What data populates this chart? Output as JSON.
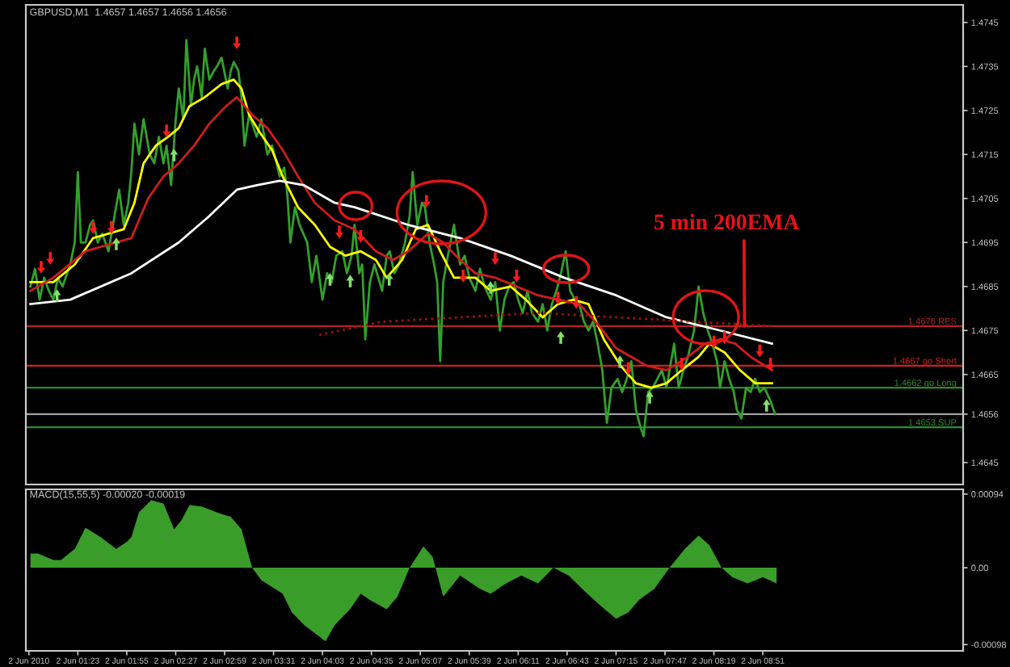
{
  "chart_data": [
    {
      "type": "line",
      "title": "GBPUSD,M1  1.4657 1.4657 1.4656 1.4656",
      "xlim": [
        "2010-06-02T00:49",
        "2010-06-02T11:02"
      ],
      "ylim": [
        1.464,
        1.4749
      ],
      "yticks": [
        1.4745,
        1.4735,
        1.4725,
        1.4715,
        1.4705,
        1.4695,
        1.4685,
        1.4675,
        1.4665,
        1.4656,
        1.4645
      ],
      "tick_labels": "y",
      "series": [
        {
          "color": "#33a02c",
          "x": [
            "2010-06-02T00:52",
            "2010-06-02T00:55",
            "2010-06-02T00:58",
            "2010-06-02T01:01",
            "2010-06-02T01:04",
            "2010-06-02T01:07",
            "2010-06-02T01:10",
            "2010-06-02T01:13",
            "2010-06-02T01:18",
            "2010-06-02T01:21",
            "2010-06-02T01:23",
            "2010-06-02T01:25",
            "2010-06-02T01:28",
            "2010-06-02T01:31",
            "2010-06-02T01:33",
            "2010-06-02T01:36",
            "2010-06-02T01:39",
            "2010-06-02T01:43",
            "2010-06-02T01:46",
            "2010-06-02T01:50",
            "2010-06-02T01:53",
            "2010-06-02T01:56",
            "2010-06-02T01:58",
            "2010-06-02T02:00",
            "2010-06-02T02:03",
            "2010-06-02T02:06",
            "2010-06-02T02:10",
            "2010-06-02T02:13",
            "2010-06-02T02:16",
            "2010-06-02T02:19",
            "2010-06-02T02:21",
            "2010-06-02T02:24",
            "2010-06-02T02:27",
            "2010-06-02T02:29",
            "2010-06-02T02:32",
            "2010-06-02T02:34",
            "2010-06-02T02:37",
            "2010-06-02T02:39",
            "2010-06-02T02:41",
            "2010-06-02T02:44",
            "2010-06-02T02:46",
            "2010-06-02T02:49",
            "2010-06-02T02:52",
            "2010-06-02T02:54",
            "2010-06-02T02:57",
            "2010-06-02T03:01",
            "2010-06-02T03:03",
            "2010-06-02T03:05",
            "2010-06-02T03:08",
            "2010-06-02T03:10",
            "2010-06-02T03:12",
            "2010-06-02T03:15",
            "2010-06-02T03:18",
            "2010-06-02T03:20",
            "2010-06-02T03:23",
            "2010-06-02T03:27",
            "2010-06-02T03:30",
            "2010-06-02T03:33",
            "2010-06-02T03:35",
            "2010-06-02T03:38",
            "2010-06-02T03:40",
            "2010-06-02T03:42",
            "2010-06-02T03:45",
            "2010-06-02T03:48",
            "2010-06-02T03:53",
            "2010-06-02T03:56",
            "2010-06-02T03:59",
            "2010-06-02T04:03",
            "2010-06-02T04:06",
            "2010-06-02T04:09",
            "2010-06-02T04:12",
            "2010-06-02T04:16",
            "2010-06-02T04:19",
            "2010-06-02T04:22",
            "2010-06-02T04:24",
            "2010-06-02T04:27",
            "2010-06-02T04:29",
            "2010-06-02T04:31",
            "2010-06-02T04:34",
            "2010-06-02T04:37",
            "2010-06-02T04:42",
            "2010-06-02T04:45",
            "2010-06-02T04:47",
            "2010-06-02T04:50",
            "2010-06-02T04:53",
            "2010-06-02T04:57",
            "2010-06-02T05:00",
            "2010-06-02T05:02",
            "2010-06-02T05:05",
            "2010-06-02T05:08",
            "2010-06-02T05:10",
            "2010-06-02T05:13",
            "2010-06-02T05:16",
            "2010-06-02T05:18",
            "2010-06-02T05:20",
            "2010-06-02T05:22",
            "2010-06-02T05:25",
            "2010-06-02T05:29",
            "2010-06-02T05:33",
            "2010-06-02T05:36",
            "2010-06-02T05:39",
            "2010-06-02T05:43",
            "2010-06-02T05:46",
            "2010-06-02T05:49",
            "2010-06-02T05:53",
            "2010-06-02T05:56",
            "2010-06-02T05:59",
            "2010-06-02T06:02",
            "2010-06-02T06:05",
            "2010-06-02T06:08",
            "2010-06-02T06:11",
            "2010-06-02T06:14",
            "2010-06-02T06:17",
            "2010-06-02T06:20",
            "2010-06-02T06:24",
            "2010-06-02T06:27",
            "2010-06-02T06:30",
            "2010-06-02T06:33",
            "2010-06-02T06:36",
            "2010-06-02T06:39",
            "2010-06-02T06:42",
            "2010-06-02T06:45",
            "2010-06-02T06:48",
            "2010-06-02T06:51",
            "2010-06-02T06:54",
            "2010-06-02T06:57",
            "2010-06-02T07:00",
            "2010-06-02T07:03",
            "2010-06-02T07:06",
            "2010-06-02T07:09",
            "2010-06-02T07:12",
            "2010-06-02T07:16",
            "2010-06-02T07:19",
            "2010-06-02T07:22",
            "2010-06-02T07:25",
            "2010-06-02T07:28",
            "2010-06-02T07:31",
            "2010-06-02T07:33",
            "2010-06-02T07:36",
            "2010-06-02T07:39",
            "2010-06-02T07:42",
            "2010-06-02T07:45",
            "2010-06-02T07:48",
            "2010-06-02T07:51",
            "2010-06-02T07:53",
            "2010-06-02T07:56",
            "2010-06-02T07:59",
            "2010-06-02T08:02",
            "2010-06-02T08:06",
            "2010-06-02T08:09",
            "2010-06-02T08:12",
            "2010-06-02T08:15",
            "2010-06-02T08:18",
            "2010-06-02T08:21",
            "2010-06-02T08:23",
            "2010-06-02T08:26",
            "2010-06-02T08:29",
            "2010-06-02T08:32",
            "2010-06-02T08:34",
            "2010-06-02T08:37",
            "2010-06-02T08:40",
            "2010-06-02T08:43",
            "2010-06-02T08:46",
            "2010-06-02T08:49",
            "2010-06-02T08:52",
            "2010-06-02T08:56",
            "2010-06-02T08:59"
          ],
          "values": [
            1.4685,
            1.4689,
            1.4682,
            1.4687,
            1.4684,
            1.4682,
            1.4687,
            1.4685,
            1.469,
            1.4695,
            1.4711,
            1.4695,
            1.4695,
            1.4699,
            1.47,
            1.4695,
            1.4697,
            1.4693,
            1.4699,
            1.4707,
            1.4699,
            1.4704,
            1.4711,
            1.4722,
            1.4715,
            1.4723,
            1.4715,
            1.4713,
            1.4719,
            1.4713,
            1.4717,
            1.4708,
            1.4723,
            1.473,
            1.4723,
            1.4741,
            1.4726,
            1.4732,
            1.4735,
            1.4728,
            1.4739,
            1.4732,
            1.4734,
            1.4735,
            1.4737,
            1.473,
            1.4734,
            1.4736,
            1.4734,
            1.4728,
            1.4717,
            1.4724,
            1.4721,
            1.4719,
            1.4723,
            1.4715,
            1.4717,
            1.4713,
            1.471,
            1.4712,
            1.4706,
            1.4695,
            1.4703,
            1.4699,
            1.4695,
            1.4686,
            1.4692,
            1.4682,
            1.4688,
            1.4686,
            1.4692,
            1.4693,
            1.4688,
            1.4692,
            1.4699,
            1.4688,
            1.469,
            1.4673,
            1.4686,
            1.469,
            1.4684,
            1.4692,
            1.4693,
            1.4688,
            1.469,
            1.4695,
            1.4701,
            1.4711,
            1.4699,
            1.4704,
            1.4703,
            1.4695,
            1.469,
            1.4686,
            1.4668,
            1.4686,
            1.4692,
            1.4699,
            1.469,
            1.4692,
            1.4687,
            1.4684,
            1.4689,
            1.4685,
            1.4682,
            1.4686,
            1.4675,
            1.4682,
            1.4685,
            1.4686,
            1.4682,
            1.4679,
            1.4684,
            1.4679,
            1.4677,
            1.4681,
            1.4675,
            1.4681,
            1.4684,
            1.4688,
            1.4693,
            1.4684,
            1.4682,
            1.4681,
            1.4677,
            1.4675,
            1.4677,
            1.4672,
            1.4666,
            1.4654,
            1.4662,
            1.4664,
            1.4661,
            1.4664,
            1.4668,
            1.4657,
            1.4653,
            1.4651,
            1.4661,
            1.4662,
            1.4664,
            1.4666,
            1.4662,
            1.4668,
            1.4672,
            1.4662,
            1.4666,
            1.4669,
            1.4675,
            1.4685,
            1.4679,
            1.4675,
            1.4672,
            1.4668,
            1.4662,
            1.4668,
            1.4664,
            1.4661,
            1.4657,
            1.4655,
            1.4662,
            1.4661,
            1.4664,
            1.4661,
            1.4662,
            1.4659,
            1.4656
          ]
        },
        {
          "color": "#ffff00",
          "x": [
            "2010-06-02T00:52",
            "2010-06-02T01:07",
            "2010-06-02T01:21",
            "2010-06-02T01:33",
            "2010-06-02T01:43",
            "2010-06-02T01:53",
            "2010-06-02T02:00",
            "2010-06-02T02:06",
            "2010-06-02T02:14",
            "2010-06-02T02:22",
            "2010-06-02T02:29",
            "2010-06-02T02:36",
            "2010-06-02T02:46",
            "2010-06-02T02:57",
            "2010-06-02T03:05",
            "2010-06-02T03:10",
            "2010-06-02T03:15",
            "2010-06-02T03:22",
            "2010-06-02T03:30",
            "2010-06-02T03:37",
            "2010-06-02T03:47",
            "2010-06-02T03:58",
            "2010-06-02T04:08",
            "2010-06-02T04:18",
            "2010-06-02T04:28",
            "2010-06-02T04:38",
            "2010-06-02T04:45",
            "2010-06-02T04:55",
            "2010-06-02T05:04",
            "2010-06-02T05:12",
            "2010-06-02T05:20",
            "2010-06-02T05:29",
            "2010-06-02T05:43",
            "2010-06-02T05:53",
            "2010-06-02T06:06",
            "2010-06-02T06:16",
            "2010-06-02T06:27",
            "2010-06-02T06:37",
            "2010-06-02T06:47",
            "2010-06-02T06:57",
            "2010-06-02T07:07",
            "2010-06-02T07:18",
            "2010-06-02T07:28",
            "2010-06-02T07:38",
            "2010-06-02T07:48",
            "2010-06-02T07:58",
            "2010-06-02T08:09",
            "2010-06-02T08:16",
            "2010-06-02T08:26",
            "2010-06-02T08:36",
            "2010-06-02T08:46",
            "2010-06-02T08:57"
          ],
          "values": [
            1.4686,
            1.4686,
            1.469,
            1.4696,
            1.4697,
            1.4698,
            1.4704,
            1.4713,
            1.4717,
            1.4719,
            1.4721,
            1.4726,
            1.4728,
            1.4731,
            1.4732,
            1.473,
            1.4724,
            1.472,
            1.4716,
            1.471,
            1.4703,
            1.4699,
            1.4694,
            1.4692,
            1.4693,
            1.4691,
            1.4687,
            1.4691,
            1.4698,
            1.4699,
            1.4693,
            1.4687,
            1.4687,
            1.4684,
            1.4685,
            1.4682,
            1.4678,
            1.4681,
            1.4682,
            1.4681,
            1.4673,
            1.4667,
            1.4663,
            1.4662,
            1.4663,
            1.4666,
            1.4669,
            1.4672,
            1.467,
            1.4666,
            1.4663,
            1.4663
          ]
        },
        {
          "color": "#d01c1c",
          "x": [
            "2010-06-02T00:52",
            "2010-06-02T01:07",
            "2010-06-02T01:28",
            "2010-06-02T01:48",
            "2010-06-02T01:58",
            "2010-06-02T02:09",
            "2010-06-02T02:19",
            "2010-06-02T02:29",
            "2010-06-02T02:39",
            "2010-06-02T02:49",
            "2010-06-02T03:00",
            "2010-06-02T03:07",
            "2010-06-02T03:17",
            "2010-06-02T03:27",
            "2010-06-02T03:37",
            "2010-06-02T03:47",
            "2010-06-02T03:58",
            "2010-06-02T04:11",
            "2010-06-02T04:24",
            "2010-06-02T04:38",
            "2010-06-02T04:49",
            "2010-06-02T04:59",
            "2010-06-02T05:12",
            "2010-06-02T05:22",
            "2010-06-02T05:33",
            "2010-06-02T05:43",
            "2010-06-02T05:56",
            "2010-06-02T06:10",
            "2010-06-02T06:24",
            "2010-06-02T06:37",
            "2010-06-02T06:51",
            "2010-06-02T07:04",
            "2010-06-02T07:15",
            "2010-06-02T07:25",
            "2010-06-02T07:35",
            "2010-06-02T07:48",
            "2010-06-02T08:02",
            "2010-06-02T08:13",
            "2010-06-02T08:23",
            "2010-06-02T08:33",
            "2010-06-02T08:43",
            "2010-06-02T08:57"
          ],
          "values": [
            1.4684,
            1.4687,
            1.4693,
            1.4695,
            1.4696,
            1.4705,
            1.471,
            1.4713,
            1.4717,
            1.4722,
            1.4726,
            1.4728,
            1.4724,
            1.4721,
            1.4716,
            1.471,
            1.4704,
            1.47,
            1.4698,
            1.4693,
            1.4691,
            1.4693,
            1.4697,
            1.4695,
            1.4691,
            1.4688,
            1.4687,
            1.4685,
            1.4683,
            1.4682,
            1.4681,
            1.4676,
            1.4671,
            1.4669,
            1.4667,
            1.4666,
            1.4669,
            1.4672,
            1.4673,
            1.4672,
            1.4669,
            1.4666
          ]
        },
        {
          "color": "#ffffff",
          "x": [
            "2010-06-02T00:52",
            "2010-06-02T01:18",
            "2010-06-02T01:58",
            "2010-06-02T02:29",
            "2010-06-02T02:49",
            "2010-06-02T03:07",
            "2010-06-02T03:20",
            "2010-06-02T03:35",
            "2010-06-02T03:51",
            "2010-06-02T04:11",
            "2010-06-02T04:24",
            "2010-06-02T04:59",
            "2010-06-02T05:33",
            "2010-06-02T06:06",
            "2010-06-02T06:41",
            "2010-06-02T07:15",
            "2010-06-02T07:48",
            "2010-06-02T08:23",
            "2010-06-02T08:57"
          ],
          "values": [
            1.4681,
            1.4682,
            1.4688,
            1.4695,
            1.4701,
            1.4707,
            1.4708,
            1.4709,
            1.4708,
            1.4704,
            1.4703,
            1.4699,
            1.4696,
            1.4692,
            1.4687,
            1.4683,
            1.4678,
            1.4675,
            1.4672
          ]
        },
        {
          "color": "#a01010",
          "line_style": "dotted",
          "x": [
            "2010-06-02T04:01",
            "2010-06-02T04:42",
            "2010-06-02T05:33",
            "2010-06-02T06:24",
            "2010-06-02T07:15",
            "2010-06-02T08:06",
            "2010-06-02T08:57"
          ],
          "values": [
            1.4674,
            1.4677,
            1.4678,
            1.4679,
            1.4678,
            1.4677,
            1.4676
          ]
        },
        {
          "type": "scatter",
          "marker": "triangle",
          "color": "#ff1a1a",
          "x": [
            "2010-06-02T00:59",
            "2010-06-02T01:05",
            "2010-06-02T01:33",
            "2010-06-02T01:45",
            "2010-06-02T02:21",
            "2010-06-02T03:07",
            "2010-06-02T04:14",
            "2010-06-02T04:28",
            "2010-06-02T05:11",
            "2010-06-02T05:35",
            "2010-06-02T05:56",
            "2010-06-02T06:10",
            "2010-06-02T06:37",
            "2010-06-02T06:49",
            "2010-06-02T07:23",
            "2010-06-02T07:58",
            "2010-06-02T08:19",
            "2010-06-02T08:26",
            "2010-06-02T08:49",
            "2010-06-02T08:56"
          ],
          "values": [
            1.4689,
            1.4691,
            1.4698,
            1.4698,
            1.472,
            1.474,
            1.4697,
            1.4696,
            1.4704,
            1.4687,
            1.4691,
            1.4687,
            1.4682,
            1.4681,
            1.4666,
            1.4667,
            1.4672,
            1.4673,
            1.467,
            1.4667
          ]
        }
      ],
      "ref_lines": [
        {
          "axis": "y",
          "value": 1.4676,
          "label": "1.4676 RES",
          "color": "#b22222"
        },
        {
          "axis": "y",
          "value": 1.4667,
          "label": "1.4667 go Short",
          "color": "#cc2222"
        },
        {
          "axis": "y",
          "value": 1.4662,
          "label": "1.4662 go Long",
          "color": "#2e8b2e"
        },
        {
          "axis": "y",
          "value": 1.4656,
          "color": "#a0a0a0"
        },
        {
          "axis": "y",
          "value": 1.4653,
          "label": "1.4653 SUP",
          "color": "#2e8b2e"
        }
      ],
      "annotations": [
        {
          "text": "5 min 200EMA",
          "x": "2010-06-02T08:39",
          "y": 1.4676
        }
      ]
    },
    {
      "type": "area",
      "title": "MACD(15,55,5) -0.00020 -0.00019",
      "xlim": [
        "2010-06-02T00:49",
        "2010-06-02T11:02"
      ],
      "ylim": [
        -0.00106,
        0.001
      ],
      "xticks": [
        {
          "value": "2010-06-02T00:51",
          "label": "2 Jun 2010"
        },
        {
          "value": "2010-06-02T01:23",
          "label": "2 Jun 01:23"
        },
        {
          "value": "2010-06-02T01:55",
          "label": "2 Jun 01:55"
        },
        {
          "value": "2010-06-02T02:27",
          "label": "2 Jun 02:27"
        },
        {
          "value": "2010-06-02T02:59",
          "label": "2 Jun 02:59"
        },
        {
          "value": "2010-06-02T03:31",
          "label": "2 Jun 03:31"
        },
        {
          "value": "2010-06-02T04:03",
          "label": "2 Jun 04:03"
        },
        {
          "value": "2010-06-02T04:35",
          "label": "2 Jun 04:35"
        },
        {
          "value": "2010-06-02T05:07",
          "label": "2 Jun 05:07"
        },
        {
          "value": "2010-06-02T05:39",
          "label": "2 Jun 05:39"
        },
        {
          "value": "2010-06-02T06:11",
          "label": "2 Jun 06:11"
        },
        {
          "value": "2010-06-02T06:43",
          "label": "2 Jun 06:43"
        },
        {
          "value": "2010-06-02T07:15",
          "label": "2 Jun 07:15"
        },
        {
          "value": "2010-06-02T07:47",
          "label": "2 Jun 07:47"
        },
        {
          "value": "2010-06-02T08:19",
          "label": "2 Jun 08:19"
        },
        {
          "value": "2010-06-02T08:51",
          "label": "2 Jun 08:51"
        }
      ],
      "yticks": [
        0.00094,
        {
          "value": 0,
          "label": "0.00"
        },
        -0.00098
      ],
      "x": [
        "2010-06-02T00:52",
        "2010-06-02T00:57",
        "2010-06-02T01:07",
        "2010-06-02T01:12",
        "2010-06-02T01:21",
        "2010-06-02T01:28",
        "2010-06-02T01:38",
        "2010-06-02T01:48",
        "2010-06-02T01:55",
        "2010-06-02T01:58",
        "2010-06-02T02:03",
        "2010-06-02T02:11",
        "2010-06-02T02:19",
        "2010-06-02T02:26",
        "2010-06-02T02:31",
        "2010-06-02T02:36",
        "2010-06-02T02:44",
        "2010-06-02T02:56",
        "2010-06-02T03:03",
        "2010-06-02T03:10",
        "2010-06-02T03:17",
        "2010-06-02T03:23",
        "2010-06-02T03:37",
        "2010-06-02T03:43",
        "2010-06-02T03:51",
        "2010-06-02T04:05",
        "2010-06-02T04:11",
        "2010-06-02T04:21",
        "2010-06-02T04:28",
        "2010-06-02T04:34",
        "2010-06-02T04:45",
        "2010-06-02T04:52",
        "2010-06-02T05:00",
        "2010-06-02T05:09",
        "2010-06-02T05:15",
        "2010-06-02T05:22",
        "2010-06-02T05:33",
        "2010-06-02T05:46",
        "2010-06-02T05:53",
        "2010-06-02T06:03",
        "2010-06-02T06:13",
        "2010-06-02T06:24",
        "2010-06-02T06:34",
        "2010-06-02T06:44",
        "2010-06-02T06:54",
        "2010-06-02T07:04",
        "2010-06-02T07:15",
        "2010-06-02T07:23",
        "2010-06-02T07:30",
        "2010-06-02T07:40",
        "2010-06-02T07:50",
        "2010-06-02T08:00",
        "2010-06-02T08:09",
        "2010-06-02T08:16",
        "2010-06-02T08:24",
        "2010-06-02T08:31",
        "2010-06-02T08:41",
        "2010-06-02T08:51",
        "2010-06-02T09:00"
      ],
      "series": [
        {
          "color": "#3a9d2a",
          "values": [
            0.00018,
            0.00018,
            0.0001,
            0.0001,
            0.00024,
            0.00051,
            0.00039,
            0.00024,
            0.00033,
            0.00039,
            0.00071,
            0.00086,
            0.00082,
            0.00049,
            0.00061,
            0.0008,
            0.00078,
            0.00069,
            0.00065,
            0.00049,
            0,
            -0.00016,
            -0.00033,
            -0.00057,
            -0.00073,
            -0.00094,
            -0.00073,
            -0.00053,
            -0.00033,
            -0.00041,
            -0.00053,
            -0.00037,
            0,
            0.00027,
            0.00014,
            -0.00037,
            -0.0001,
            -0.00027,
            -0.00033,
            -0.0002,
            -0.0001,
            -0.0002,
            0,
            -0.0001,
            -0.00029,
            -0.00047,
            -0.00065,
            -0.00057,
            -0.00041,
            -0.00027,
            0,
            0.00024,
            0.00041,
            0.00029,
            0,
            -0.00012,
            -0.0002,
            -0.00012,
            -0.0002
          ]
        }
      ]
    }
  ]
}
